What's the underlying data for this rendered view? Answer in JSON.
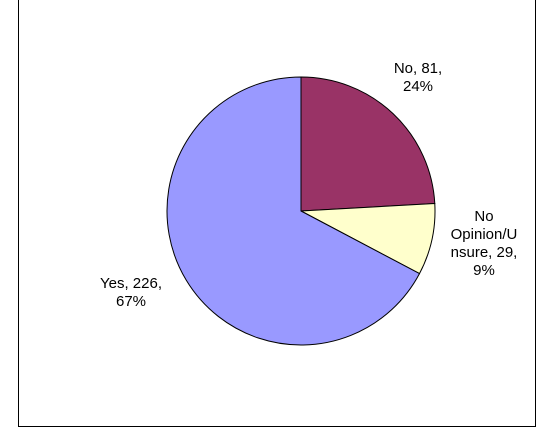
{
  "chart_data": {
    "type": "pie",
    "title": "",
    "slices": [
      {
        "name": "No",
        "value": 81,
        "percent": "24%",
        "color": "#993366",
        "label_lines": [
          "No, 81,",
          "24%"
        ]
      },
      {
        "name": "No Opinion/Unsure",
        "value": 29,
        "percent": "9%",
        "color": "#ffffcc",
        "label_lines": [
          "No",
          "Opinion/U",
          "nsure, 29,",
          "9%"
        ]
      },
      {
        "name": "Yes",
        "value": 226,
        "percent": "67%",
        "color": "#9999ff",
        "label_lines": [
          "Yes, 226,",
          "67%"
        ]
      }
    ],
    "start_angle_deg": 0,
    "direction": "clockwise",
    "legend": "none"
  }
}
